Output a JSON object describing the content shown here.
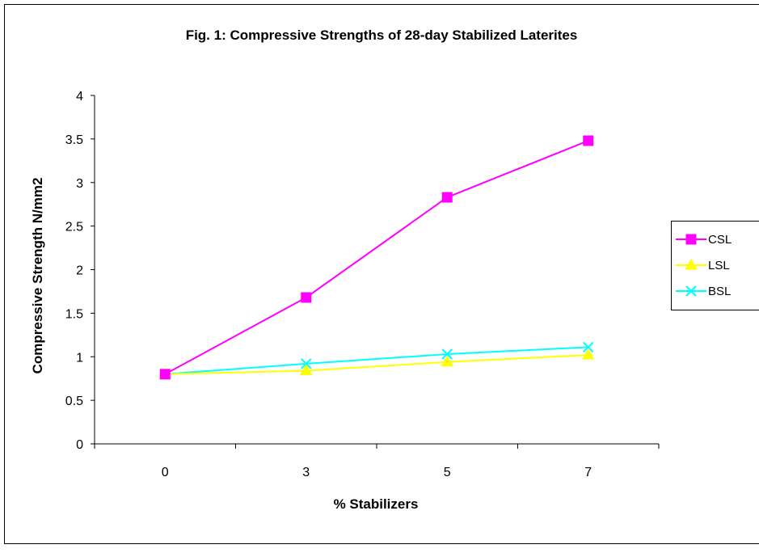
{
  "chart_data": {
    "type": "line",
    "title": "Fig. 1: Compressive Strengths of 28-day Stabilized Laterites",
    "xlabel": "% Stabilizers",
    "ylabel": "Compressive Strength N/mm2",
    "categories": [
      "0",
      "3",
      "5",
      "7"
    ],
    "ylim": [
      0,
      4
    ],
    "yticks": [
      "0",
      "0.5",
      "1",
      "1.5",
      "2",
      "2.5",
      "3",
      "3.5",
      "4"
    ],
    "grid": false,
    "legend_position": "right",
    "series": [
      {
        "name": "CSL",
        "values": [
          0.8,
          1.68,
          2.83,
          3.48
        ],
        "color": "#ff00ff",
        "marker": "square"
      },
      {
        "name": "LSL",
        "values": [
          0.8,
          0.84,
          0.94,
          1.02
        ],
        "color": "#ffff00",
        "marker": "triangle"
      },
      {
        "name": "BSL",
        "values": [
          0.8,
          0.92,
          1.03,
          1.11
        ],
        "color": "#00ffff",
        "marker": "x"
      }
    ]
  }
}
